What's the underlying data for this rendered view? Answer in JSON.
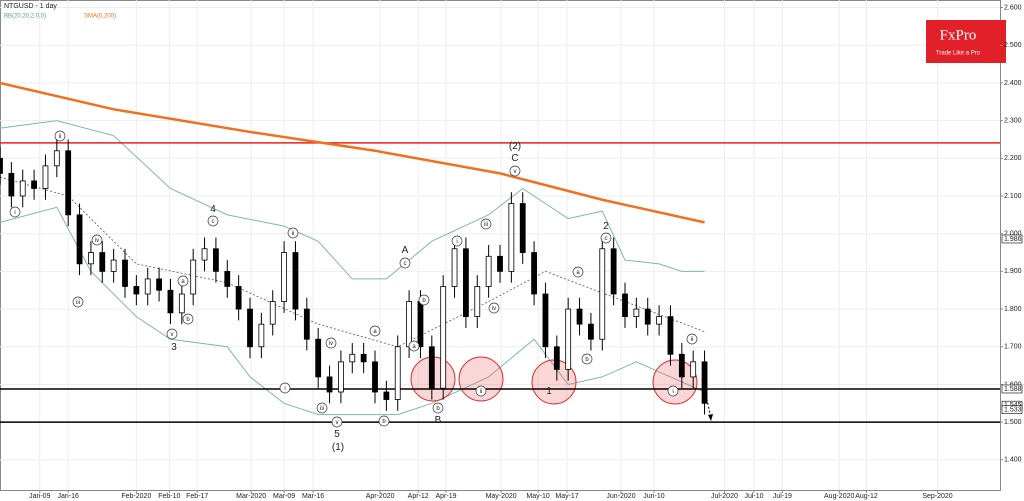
{
  "chart_data": {
    "type": "candlestick",
    "title": "NTGUSD - 1 day",
    "indicators": [
      {
        "name": "BB(20,20,2,0,0)",
        "color": "#5c9c8c"
      },
      {
        "name": "SMA(0,200)",
        "color": "#f07020"
      }
    ],
    "logo": {
      "title": "FxPro",
      "subtitle": "Trade Like a Pro"
    },
    "x": [
      0,
      2,
      4,
      6,
      8,
      10,
      12,
      14,
      16,
      18,
      20,
      22,
      24,
      26,
      28,
      30,
      32,
      34,
      36,
      38,
      40,
      42,
      44,
      46,
      48,
      50,
      52,
      54,
      56,
      58,
      60,
      62,
      64,
      66,
      68,
      70,
      72,
      74,
      76,
      78,
      80,
      82,
      84,
      86,
      88,
      90,
      92,
      94,
      96,
      98,
      100,
      102,
      104,
      106,
      108,
      110,
      112,
      114,
      116,
      118,
      120,
      122,
      124
    ],
    "open": [
      2.2,
      2.16,
      2.1,
      2.14,
      2.12,
      2.18,
      2.22,
      2.05,
      1.92,
      1.95,
      1.9,
      1.93,
      1.86,
      1.84,
      1.88,
      1.85,
      1.79,
      1.84,
      1.93,
      1.96,
      1.9,
      1.86,
      1.8,
      1.7,
      1.76,
      1.82,
      1.95,
      1.8,
      1.72,
      1.62,
      1.58,
      1.66,
      1.68,
      1.66,
      1.58,
      1.56,
      1.7,
      1.82,
      1.7,
      1.59,
      1.86,
      1.96,
      1.78,
      1.86,
      1.94,
      1.9,
      2.08,
      1.95,
      1.84,
      1.7,
      1.64,
      1.8,
      1.76,
      1.72,
      1.96,
      1.84,
      1.78,
      1.8,
      1.76,
      1.78,
      1.68,
      1.62,
      1.66
    ],
    "high": [
      2.23,
      2.19,
      2.17,
      2.17,
      2.21,
      2.25,
      2.25,
      2.08,
      1.98,
      1.98,
      1.96,
      1.96,
      1.89,
      1.91,
      1.91,
      1.88,
      1.87,
      1.96,
      1.99,
      1.99,
      1.93,
      1.89,
      1.83,
      1.79,
      1.85,
      1.98,
      1.98,
      1.83,
      1.75,
      1.65,
      1.69,
      1.71,
      1.71,
      1.69,
      1.61,
      1.73,
      1.85,
      1.85,
      1.73,
      1.89,
      1.99,
      1.99,
      1.89,
      1.97,
      1.97,
      2.11,
      2.11,
      1.98,
      1.87,
      1.73,
      1.83,
      1.83,
      1.79,
      1.99,
      1.99,
      1.87,
      1.83,
      1.83,
      1.81,
      1.81,
      1.71,
      1.69,
      1.69
    ],
    "low": [
      2.13,
      2.07,
      2.07,
      2.09,
      2.09,
      2.15,
      2.02,
      1.89,
      1.89,
      1.87,
      1.87,
      1.83,
      1.81,
      1.81,
      1.82,
      1.76,
      1.76,
      1.81,
      1.9,
      1.87,
      1.83,
      1.77,
      1.67,
      1.67,
      1.73,
      1.79,
      1.77,
      1.69,
      1.59,
      1.55,
      1.55,
      1.63,
      1.63,
      1.55,
      1.53,
      1.53,
      1.67,
      1.67,
      1.56,
      1.56,
      1.83,
      1.75,
      1.75,
      1.83,
      1.87,
      1.87,
      1.92,
      1.81,
      1.67,
      1.61,
      1.61,
      1.73,
      1.69,
      1.69,
      1.81,
      1.75,
      1.75,
      1.73,
      1.73,
      1.65,
      1.59,
      1.59,
      1.52
    ],
    "close": [
      2.16,
      2.1,
      2.14,
      2.12,
      2.18,
      2.22,
      2.05,
      1.92,
      1.95,
      1.9,
      1.93,
      1.86,
      1.84,
      1.88,
      1.85,
      1.79,
      1.84,
      1.93,
      1.96,
      1.9,
      1.86,
      1.8,
      1.7,
      1.76,
      1.82,
      1.95,
      1.8,
      1.72,
      1.62,
      1.58,
      1.66,
      1.68,
      1.66,
      1.58,
      1.56,
      1.7,
      1.82,
      1.7,
      1.59,
      1.86,
      1.96,
      1.78,
      1.86,
      1.94,
      1.9,
      2.08,
      1.95,
      1.84,
      1.7,
      1.64,
      1.8,
      1.76,
      1.72,
      1.96,
      1.84,
      1.78,
      1.8,
      1.76,
      1.78,
      1.68,
      1.62,
      1.66,
      1.55
    ],
    "lines": [
      {
        "color": "#f07020",
        "width": 2.5,
        "x": [
          0,
          20,
          44,
          66,
          88,
          106,
          124
        ],
        "values": [
          2.4,
          2.33,
          2.27,
          2.22,
          2.16,
          2.09,
          2.03
        ]
      },
      {
        "color": "#7fb8a8",
        "width": 1,
        "x": [
          0,
          10,
          20,
          30,
          40,
          50,
          56,
          62,
          68,
          76,
          86,
          92,
          100,
          106,
          110,
          116,
          120,
          124
        ],
        "values": [
          2.28,
          2.3,
          2.26,
          2.12,
          2.05,
          2.02,
          1.98,
          1.88,
          1.88,
          1.98,
          2.05,
          2.12,
          2.04,
          2.06,
          1.93,
          1.92,
          1.9,
          1.9
        ]
      },
      {
        "color": "#7fb8a8",
        "width": 1,
        "x": [
          0,
          10,
          16,
          24,
          30,
          40,
          44,
          50,
          56,
          62,
          70,
          76,
          86,
          94,
          100,
          106,
          112,
          118,
          124
        ],
        "values": [
          2.03,
          2.07,
          1.9,
          1.78,
          1.72,
          1.7,
          1.62,
          1.55,
          1.52,
          1.52,
          1.52,
          1.55,
          1.62,
          1.72,
          1.6,
          1.62,
          1.66,
          1.62,
          1.58
        ]
      },
      {
        "color": "#555555",
        "width": 0.8,
        "dashed": true,
        "x": [
          0,
          12,
          24,
          40,
          56,
          70,
          86,
          96,
          110,
          124
        ],
        "values": [
          2.15,
          2.1,
          1.92,
          1.87,
          1.76,
          1.7,
          1.82,
          1.9,
          1.82,
          1.74
        ]
      }
    ],
    "levels": [
      {
        "value": 2.241,
        "color": "#e8201a"
      },
      {
        "value": 1.588,
        "color": "#000000"
      },
      {
        "value": 1.5,
        "color": "#000000"
      }
    ],
    "price_labels": [
      {
        "value": 1.986,
        "label": "1.986"
      },
      {
        "value": 1.588,
        "label": "1.588"
      },
      {
        "value": 1.545,
        "label": "1.545"
      },
      {
        "value": 1.533,
        "label": "1.533"
      }
    ],
    "annotations": [
      "i",
      "ii",
      "iii",
      "iv",
      "v",
      "3",
      "a",
      "b",
      "c",
      "4",
      "i",
      "ii",
      "iii",
      "iv",
      "v",
      "5",
      "(1)",
      "a",
      "b",
      "c",
      "A",
      "b",
      "a",
      "b",
      "B",
      "i",
      "ii",
      "iii",
      "iv",
      "v",
      "C",
      "(2)",
      "1",
      "a",
      "b",
      "c",
      "2",
      "i",
      "ii"
    ],
    "xlim": [
      0,
      176
    ],
    "xticks": [
      {
        "value": 7,
        "label": "Jan-09"
      },
      {
        "value": 12,
        "label": "Jan-16"
      },
      {
        "value": 24,
        "label": "Feb-2020"
      },
      {
        "value": 29.8,
        "label": "Feb-10"
      },
      {
        "value": 34.7,
        "label": "Feb-17"
      },
      {
        "value": 44.2,
        "label": "Mar-2020"
      },
      {
        "value": 50,
        "label": "Mar-09"
      },
      {
        "value": 55.1,
        "label": "Mar-16"
      },
      {
        "value": 66.9,
        "label": "Apr-2020"
      },
      {
        "value": 73.6,
        "label": "Apr-12"
      },
      {
        "value": 78.5,
        "label": "Apr-19"
      },
      {
        "value": 88.2,
        "label": "May-2020"
      },
      {
        "value": 94.7,
        "label": "May-10"
      },
      {
        "value": 99.8,
        "label": "May-17"
      },
      {
        "value": 109.3,
        "label": "Jun-2020"
      },
      {
        "value": 115.1,
        "label": "Jun-10"
      },
      {
        "value": 127.5,
        "label": "Jul-2020"
      },
      {
        "value": 132.7,
        "label": "Jul-10"
      },
      {
        "value": 137.7,
        "label": "Jul-19"
      },
      {
        "value": 147.7,
        "label": "Aug-2020"
      },
      {
        "value": 152.5,
        "label": "Aug-12"
      },
      {
        "value": 165,
        "label": "Sep-2020"
      }
    ],
    "ylim": [
      1.32,
      2.62
    ],
    "yticks": [
      {
        "value": 1.4,
        "label": "1.400"
      },
      {
        "value": 1.5,
        "label": "1.500"
      },
      {
        "value": 1.6,
        "label": "1.600"
      },
      {
        "value": 1.7,
        "label": "1.700"
      },
      {
        "value": 1.8,
        "label": "1.800"
      },
      {
        "value": 1.9,
        "label": "1.900"
      },
      {
        "value": 2.0,
        "label": "2.000"
      },
      {
        "value": 2.1,
        "label": "2.100"
      },
      {
        "value": 2.2,
        "label": "2.200"
      },
      {
        "value": 2.3,
        "label": "2.300"
      },
      {
        "value": 2.4,
        "label": "2.400"
      },
      {
        "value": 2.5,
        "label": "2.500"
      },
      {
        "value": 2.6,
        "label": "2.600"
      }
    ],
    "grid": true
  }
}
